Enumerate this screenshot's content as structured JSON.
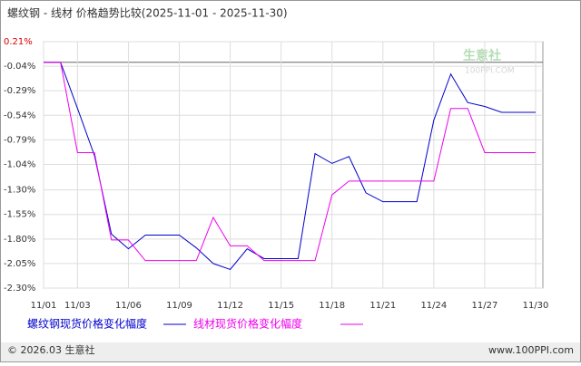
{
  "chart_data": {
    "type": "line",
    "title": "螺纹钢 - 线材 价格趋势比较(2025-11-01 - 2025-11-30)",
    "watermark": "生意社",
    "watermark_sub": "100PPI.COM",
    "footer_left": "© 2026.03 生意社",
    "footer_right": "www.100PPI.com",
    "categories": [
      "11/01",
      null,
      "11/03",
      null,
      null,
      "11/06",
      null,
      null,
      "11/09",
      null,
      null,
      "11/12",
      null,
      null,
      "11/15",
      null,
      null,
      "11/18",
      null,
      null,
      "11/21",
      null,
      null,
      "11/24",
      null,
      null,
      "11/27",
      null,
      null,
      "11/30"
    ],
    "ylim": [
      -2.3,
      0.21
    ],
    "yticks": [
      {
        "value": 0.21,
        "label": "0.21%"
      },
      {
        "value": -0.04,
        "label": "-0.04%"
      },
      {
        "value": -0.29,
        "label": "-0.29%"
      },
      {
        "value": -0.54,
        "label": "-0.54%"
      },
      {
        "value": -0.79,
        "label": "-0.79%"
      },
      {
        "value": -1.04,
        "label": "-1.04%"
      },
      {
        "value": -1.3,
        "label": "-1.30%"
      },
      {
        "value": -1.55,
        "label": "-1.55%"
      },
      {
        "value": -1.8,
        "label": "-1.80%"
      },
      {
        "value": -2.05,
        "label": "-2.05%"
      },
      {
        "value": -2.3,
        "label": "-2.30%"
      }
    ],
    "grid": true,
    "series": [
      {
        "name": "螺纹钢现货价格变化幅度",
        "color": "#0000cc",
        "values": [
          0,
          0,
          -0.47,
          -0.95,
          -1.75,
          -1.9,
          -1.76,
          -1.76,
          -1.76,
          -1.89,
          -2.05,
          -2.11,
          -1.9,
          -2.0,
          -2.0,
          -2.0,
          -0.93,
          -1.03,
          -0.96,
          -1.33,
          -1.42,
          -1.42,
          -1.42,
          -0.59,
          -0.12,
          -0.41,
          -0.45,
          -0.51,
          -0.51,
          -0.51
        ]
      },
      {
        "name": "线材现货价格变化幅度",
        "color": "#ee00ee",
        "values": [
          0,
          0,
          -0.92,
          -0.92,
          -1.81,
          -1.81,
          -2.02,
          -2.02,
          -2.02,
          -2.02,
          -1.58,
          -1.87,
          -1.87,
          -2.02,
          -2.02,
          -2.02,
          -2.02,
          -1.35,
          -1.21,
          -1.21,
          -1.21,
          -1.21,
          -1.21,
          -1.21,
          -0.47,
          -0.47,
          -0.92,
          -0.92,
          -0.92,
          -0.92
        ]
      }
    ]
  }
}
